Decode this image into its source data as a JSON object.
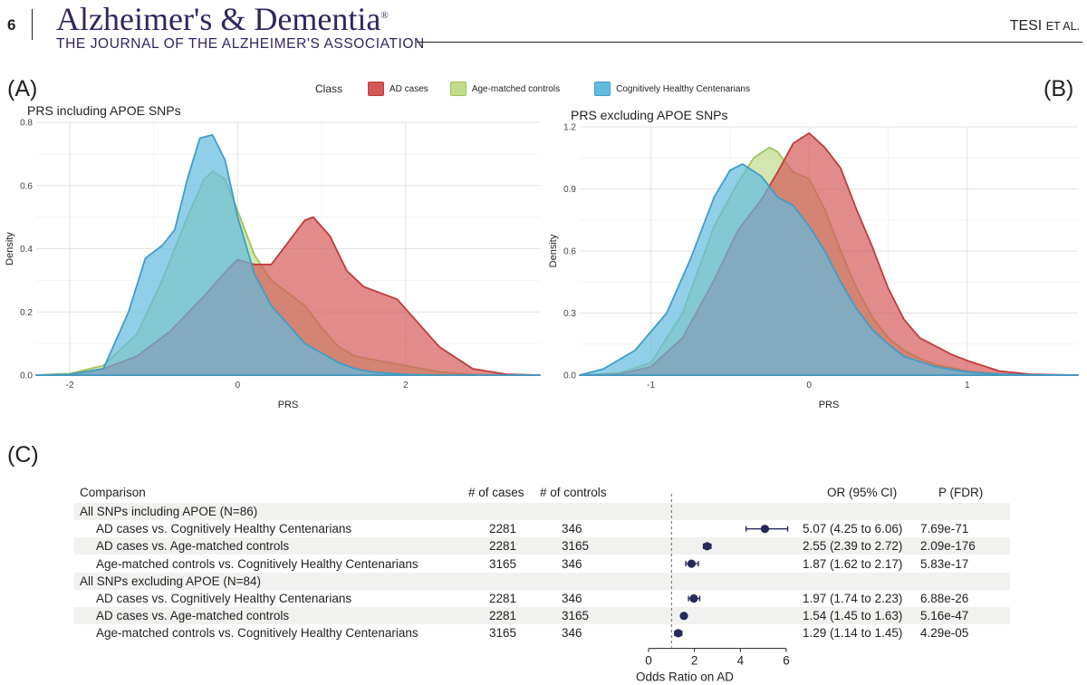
{
  "header": {
    "page_number": "6",
    "journal_title": "Alzheimer's & Dementia",
    "registered_mark": "®",
    "journal_subtitle": "THE JOURNAL OF THE ALZHEIMER'S ASSOCIATION",
    "running_author_main": "TESI",
    "running_author_small": "ET AL."
  },
  "panel_labels": {
    "a": "(A)",
    "b": "(B)",
    "c": "(C)"
  },
  "legend": {
    "title": "Class",
    "items": [
      {
        "label": "AD cases",
        "fill": "#d45a5a",
        "stroke": "#c23a3a"
      },
      {
        "label": "Age-matched controls",
        "fill": "#c2dc8e",
        "stroke": "#9cc55a"
      },
      {
        "label": "Cognitively Healthy Centenarians",
        "fill": "#62bbdf",
        "stroke": "#3c9ec9"
      }
    ]
  },
  "chart_data": [
    {
      "type": "area",
      "title": "PRS including APOE SNPs",
      "xlabel": "PRS",
      "ylabel": "Density",
      "xlim": [
        -2.4,
        3.6
      ],
      "ylim": [
        0,
        0.8
      ],
      "x_ticks": [
        -2,
        0,
        2
      ],
      "y_ticks": [
        0.0,
        0.2,
        0.4,
        0.6,
        0.8
      ],
      "y_tick_labels": [
        "0.0",
        "0.2",
        "0.4",
        "0.6",
        "0.8"
      ],
      "grid": true,
      "legend_position": "top",
      "series": [
        {
          "name": "AD cases",
          "x": [
            -2.4,
            -2.0,
            -1.6,
            -1.2,
            -0.8,
            -0.4,
            -0.1,
            0.0,
            0.2,
            0.4,
            0.6,
            0.8,
            0.9,
            1.1,
            1.3,
            1.5,
            1.7,
            1.9,
            2.1,
            2.4,
            2.8,
            3.2,
            3.6
          ],
          "y": [
            0,
            0.002,
            0.02,
            0.06,
            0.14,
            0.25,
            0.34,
            0.365,
            0.35,
            0.35,
            0.42,
            0.49,
            0.5,
            0.44,
            0.33,
            0.28,
            0.26,
            0.24,
            0.18,
            0.09,
            0.02,
            0.003,
            0
          ]
        },
        {
          "name": "Age-matched controls",
          "x": [
            -2.4,
            -2.0,
            -1.6,
            -1.2,
            -0.9,
            -0.6,
            -0.4,
            -0.3,
            -0.15,
            0.0,
            0.2,
            0.4,
            0.6,
            0.8,
            1.0,
            1.2,
            1.4,
            1.6,
            1.8,
            2.0,
            2.4,
            2.8,
            3.6
          ],
          "y": [
            0,
            0.005,
            0.03,
            0.13,
            0.3,
            0.5,
            0.62,
            0.645,
            0.62,
            0.52,
            0.38,
            0.3,
            0.26,
            0.22,
            0.15,
            0.09,
            0.06,
            0.05,
            0.04,
            0.03,
            0.01,
            0.002,
            0
          ]
        },
        {
          "name": "Cognitively Healthy Centenarians",
          "x": [
            -2.4,
            -2.0,
            -1.6,
            -1.3,
            -1.1,
            -0.9,
            -0.75,
            -0.6,
            -0.45,
            -0.3,
            -0.15,
            0.0,
            0.2,
            0.4,
            0.6,
            0.8,
            1.0,
            1.2,
            1.4,
            1.6,
            2.0,
            2.4,
            3.6
          ],
          "y": [
            0,
            0.002,
            0.02,
            0.2,
            0.37,
            0.41,
            0.46,
            0.62,
            0.75,
            0.76,
            0.68,
            0.5,
            0.32,
            0.22,
            0.16,
            0.1,
            0.07,
            0.04,
            0.02,
            0.01,
            0.002,
            0,
            0
          ]
        }
      ]
    },
    {
      "type": "area",
      "title": "PRS excluding APOE SNPs",
      "xlabel": "PRS",
      "ylabel": "Density",
      "xlim": [
        -1.45,
        1.7
      ],
      "ylim": [
        0,
        1.2
      ],
      "x_ticks": [
        -1,
        0,
        1
      ],
      "y_ticks": [
        0.0,
        0.3,
        0.6,
        0.9,
        1.2
      ],
      "y_tick_labels": [
        "0.0",
        "0.3",
        "0.6",
        "0.9",
        "1.2"
      ],
      "grid": true,
      "legend_position": "top",
      "series": [
        {
          "name": "AD cases",
          "x": [
            -1.45,
            -1.2,
            -1.0,
            -0.8,
            -0.6,
            -0.45,
            -0.3,
            -0.2,
            -0.1,
            0.0,
            0.1,
            0.2,
            0.3,
            0.4,
            0.5,
            0.6,
            0.7,
            0.8,
            0.9,
            1.0,
            1.2,
            1.4,
            1.7
          ],
          "y": [
            0,
            0.005,
            0.04,
            0.18,
            0.46,
            0.7,
            0.85,
            0.98,
            1.12,
            1.17,
            1.1,
            1.0,
            0.8,
            0.62,
            0.42,
            0.27,
            0.18,
            0.14,
            0.1,
            0.07,
            0.02,
            0.004,
            0
          ]
        },
        {
          "name": "Age-matched controls",
          "x": [
            -1.45,
            -1.2,
            -1.0,
            -0.8,
            -0.6,
            -0.45,
            -0.35,
            -0.25,
            -0.2,
            -0.1,
            0.0,
            0.1,
            0.2,
            0.3,
            0.4,
            0.5,
            0.6,
            0.7,
            0.8,
            1.0,
            1.2,
            1.45,
            1.7
          ],
          "y": [
            0,
            0.01,
            0.06,
            0.3,
            0.72,
            0.93,
            1.05,
            1.1,
            1.08,
            0.98,
            0.95,
            0.8,
            0.6,
            0.42,
            0.28,
            0.18,
            0.12,
            0.08,
            0.05,
            0.02,
            0.005,
            0,
            0
          ]
        },
        {
          "name": "Cognitively Healthy Centenarians",
          "x": [
            -1.45,
            -1.3,
            -1.1,
            -0.9,
            -0.75,
            -0.6,
            -0.5,
            -0.42,
            -0.3,
            -0.2,
            -0.1,
            0.0,
            0.1,
            0.2,
            0.3,
            0.4,
            0.5,
            0.6,
            0.8,
            1.0,
            1.2,
            1.4,
            1.7
          ],
          "y": [
            0,
            0.03,
            0.12,
            0.3,
            0.56,
            0.86,
            0.99,
            1.02,
            0.96,
            0.86,
            0.82,
            0.72,
            0.6,
            0.45,
            0.32,
            0.22,
            0.15,
            0.09,
            0.04,
            0.015,
            0.005,
            0.001,
            0
          ]
        }
      ]
    },
    {
      "type": "forest",
      "xlabel": "Odds Ratio on AD",
      "xlim": [
        0,
        6
      ],
      "x_ticks": [
        0,
        2,
        4,
        6
      ],
      "reference_line": 1,
      "columns": {
        "comparison": "Comparison",
        "cases": "# of cases",
        "controls": "# of controls",
        "or": "OR (95% CI)",
        "p": "P (FDR)"
      },
      "rows": [
        {
          "group": true,
          "label": "All SNPs including APOE (N=86)"
        },
        {
          "label": "AD cases vs. Cognitively Healthy Centenarians",
          "cases": "2281",
          "controls": "346",
          "or": 5.07,
          "lo": 4.25,
          "hi": 6.06,
          "or_text": "5.07 (4.25 to 6.06)",
          "p": "7.69e-71"
        },
        {
          "label": "AD cases vs. Age-matched controls",
          "cases": "2281",
          "controls": "3165",
          "or": 2.55,
          "lo": 2.39,
          "hi": 2.72,
          "or_text": "2.55 (2.39 to 2.72)",
          "p": "2.09e-176"
        },
        {
          "label": "Age-matched controls vs. Cognitively Healthy Centenarians",
          "cases": "3165",
          "controls": "346",
          "or": 1.87,
          "lo": 1.62,
          "hi": 2.17,
          "or_text": "1.87 (1.62 to 2.17)",
          "p": "5.83e-17"
        },
        {
          "group": true,
          "label": "All SNPs excluding APOE (N=84)"
        },
        {
          "label": "AD cases vs. Cognitively Healthy Centenarians",
          "cases": "2281",
          "controls": "346",
          "or": 1.97,
          "lo": 1.74,
          "hi": 2.23,
          "or_text": "1.97 (1.74 to 2.23)",
          "p": "6.88e-26"
        },
        {
          "label": "AD cases vs. Age-matched controls",
          "cases": "2281",
          "controls": "3165",
          "or": 1.54,
          "lo": 1.45,
          "hi": 1.63,
          "or_text": "1.54 (1.45 to 1.63)",
          "p": "5.16e-47"
        },
        {
          "label": "Age-matched controls vs. Cognitively Healthy Centenarians",
          "cases": "3165",
          "controls": "346",
          "or": 1.29,
          "lo": 1.14,
          "hi": 1.45,
          "or_text": "1.29 (1.14 to 1.45)",
          "p": "4.29e-05"
        }
      ]
    }
  ]
}
